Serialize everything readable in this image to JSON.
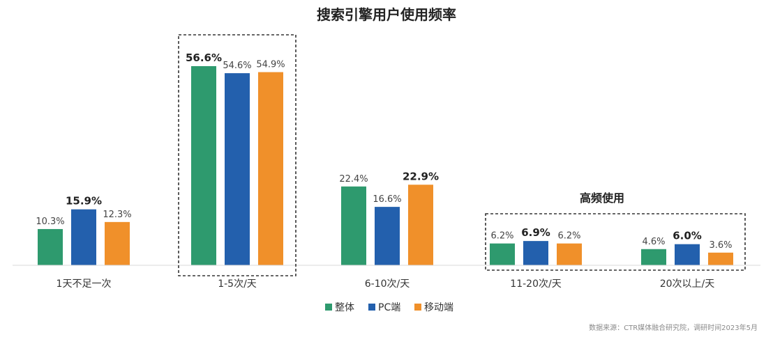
{
  "chart_data": {
    "type": "bar",
    "title": "搜索引擎用户使用频率",
    "categories": [
      "1天不足一次",
      "1-5次/天",
      "6-10次/天",
      "11-20次/天",
      "20次以上/天"
    ],
    "series": [
      {
        "name": "整体",
        "color": "#2e9a6e",
        "values": [
          10.3,
          56.6,
          22.4,
          6.2,
          4.6
        ]
      },
      {
        "name": "PC端",
        "color": "#2360ad",
        "values": [
          15.9,
          54.6,
          16.6,
          6.9,
          6.0
        ]
      },
      {
        "name": "移动端",
        "color": "#f0902a",
        "values": [
          12.3,
          54.9,
          22.9,
          6.2,
          3.6
        ]
      }
    ],
    "value_labels": [
      [
        "10.3%",
        "56.6%",
        "22.4%",
        "6.2%",
        "4.6%"
      ],
      [
        "15.9%",
        "54.6%",
        "16.6%",
        "6.9%",
        "6.0%"
      ],
      [
        "12.3%",
        "54.9%",
        "22.9%",
        "6.2%",
        "3.6%"
      ]
    ],
    "highlight_group_label": "高频使用",
    "source": "数据来源：CTR媒体融合研究院，调研时间2023年5月",
    "ylim": [
      0,
      60
    ],
    "grid": false,
    "legend_position": "bottom-center"
  }
}
